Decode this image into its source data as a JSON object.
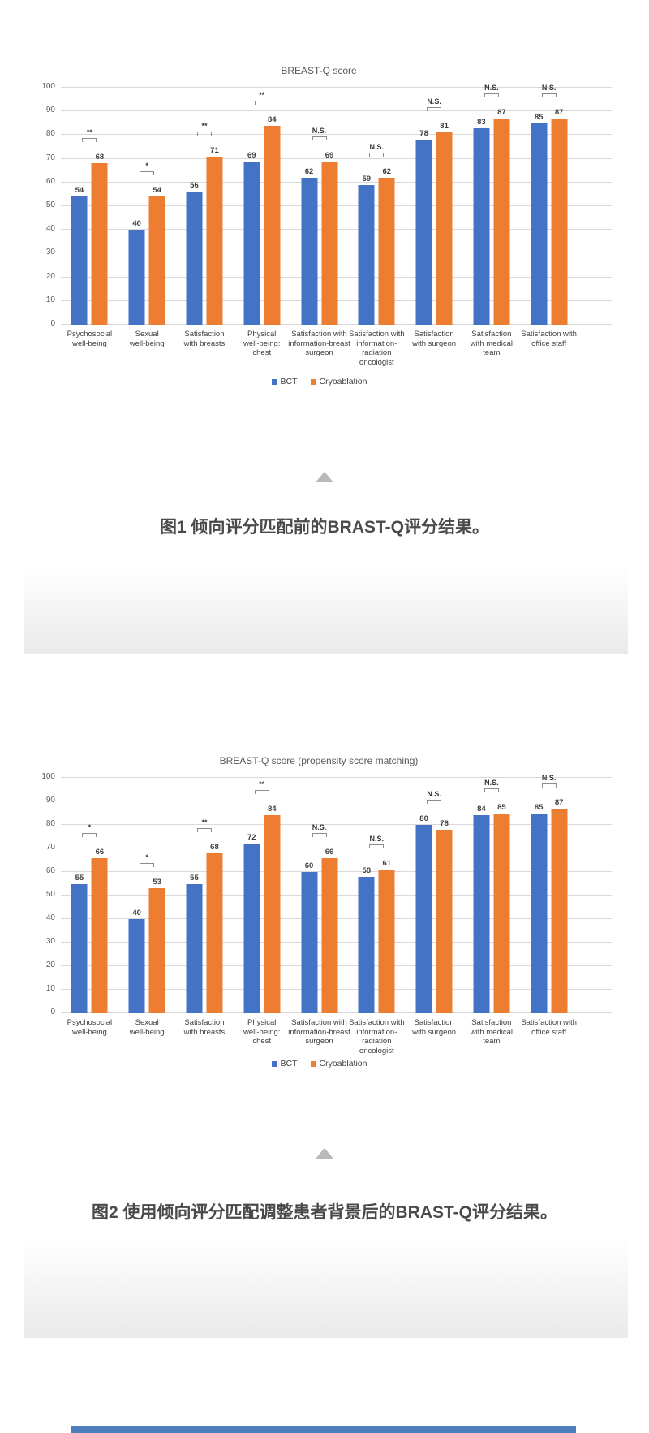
{
  "page": {
    "background": "#ffffff",
    "triangle_color": "#b9b9b9",
    "bottom_bar_color": "#4e7dbd"
  },
  "figures": {
    "fig1_caption": "图1 倾向评分匹配前的BRAST-Q评分结果。",
    "fig2_caption": "图2 使用倾向评分匹配调整患者背景后的BRAST-Q评分结果。"
  },
  "chart_data": [
    {
      "type": "bar",
      "title": "BREAST-Q score",
      "categories": [
        "Psychosocial\nwell-being",
        "Sexual\nwell-being",
        "Satisfaction\nwith breasts",
        "Physical\nwell-being:\nchest",
        "Satisfaction with\ninformation-breast\nsurgeon",
        "Satisfaction with\ninformation-\nradiation\noncologist",
        "Satisfaction\nwith surgeon",
        "Satisfaction\nwith medical\nteam",
        "Satisfaction with\noffice staff"
      ],
      "series": [
        {
          "name": "BCT",
          "color": "#4472C4",
          "values": [
            54,
            40,
            56,
            69,
            62,
            59,
            78,
            83,
            85
          ]
        },
        {
          "name": "Cryoablation",
          "color": "#ED7D31",
          "values": [
            68,
            54,
            71,
            84,
            69,
            62,
            81,
            87,
            87
          ]
        }
      ],
      "significance": [
        "**",
        "*",
        "**",
        "**",
        "N.S.",
        "N.S.",
        "N.S.",
        "N.S.",
        "N.S."
      ],
      "xlabel": "",
      "ylabel": "",
      "ylim": [
        0,
        100
      ],
      "ytick_step": 10,
      "grid": true,
      "legend_position": "bottom"
    },
    {
      "type": "bar",
      "title": "BREAST-Q score (propensity score matching)",
      "categories": [
        "Psychosocial\nwell-being",
        "Sexual\nwell-being",
        "Satisfaction\nwith breasts",
        "Physical\nwell-being:\nchest",
        "Satisfaction with\ninformation-breast\nsurgeon",
        "Satisfaction with\ninformation-\nradiation\noncologist",
        "Satisfaction\nwith surgeon",
        "Satisfaction\nwith medical\nteam",
        "Satisfaction with\noffice staff"
      ],
      "series": [
        {
          "name": "BCT",
          "color": "#4472C4",
          "values": [
            55,
            40,
            55,
            72,
            60,
            58,
            80,
            84,
            85
          ]
        },
        {
          "name": "Cryoablation",
          "color": "#ED7D31",
          "values": [
            66,
            53,
            68,
            84,
            66,
            61,
            78,
            85,
            87
          ]
        }
      ],
      "significance": [
        "*",
        "*",
        "**",
        "**",
        "N.S.",
        "N.S.",
        "N.S.",
        "N.S.",
        "N.S."
      ],
      "xlabel": "",
      "ylabel": "",
      "ylim": [
        0,
        100
      ],
      "ytick_step": 10,
      "grid": true,
      "legend_position": "bottom"
    }
  ]
}
